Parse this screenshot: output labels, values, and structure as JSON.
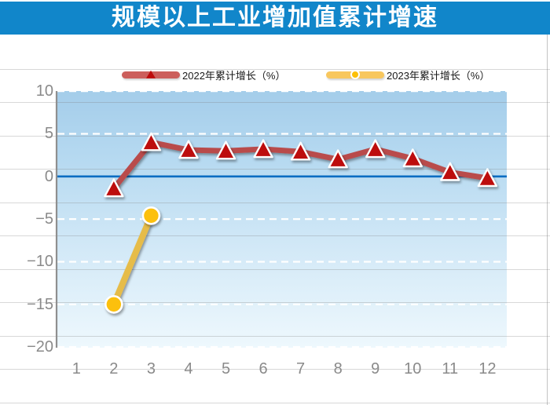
{
  "header": {
    "title": "规模以上工业增加值累计增速"
  },
  "theme": {
    "banner_color": "#1186ca",
    "title_color": "#ffffff",
    "plot_top_color": "#a4cdea",
    "plot_bottom_color": "#eef8fd",
    "gridline_color": "#ffffff",
    "zero_line_color": "#0a6dc2",
    "axis_line_color": "#8f8f8f",
    "tick_color": "#8a8a8a",
    "series_2022_line": "#b94b4b",
    "series_2022_marker": "#bd0b0b",
    "series_2023_line": "#e6bc4a",
    "series_2023_marker": "#fcc008",
    "legend_2022_pill": "#cc5f5c",
    "legend_2023_pill": "#f8c75e"
  },
  "chart_data": {
    "type": "line",
    "title": "规模以上工业增加值累计增速",
    "xlabel": "",
    "ylabel": "",
    "x_labels": [
      "1",
      "2",
      "3",
      "4",
      "5",
      "6",
      "7",
      "8",
      "9",
      "10",
      "11",
      "12"
    ],
    "ylim": [
      -20,
      10
    ],
    "yticks": [
      {
        "label": "10",
        "value": 10
      },
      {
        "label": "5",
        "value": 5
      },
      {
        "label": "0",
        "value": 0
      },
      {
        "label": "−5",
        "value": -5
      },
      {
        "label": "−10",
        "value": -10
      },
      {
        "label": "−15",
        "value": -15
      },
      {
        "label": "−20",
        "value": -20
      }
    ],
    "grid": "horizontal-white-dashed",
    "legend_position": "top",
    "series": [
      {
        "name": "2022年累计增长（%）",
        "marker": "triangle",
        "x": [
          2,
          3,
          4,
          5,
          6,
          7,
          8,
          9,
          10,
          11,
          12
        ],
        "values": [
          -1.4,
          4.0,
          3.1,
          3.0,
          3.2,
          2.9,
          2.0,
          3.2,
          2.1,
          0.5,
          -0.2
        ]
      },
      {
        "name": "2023年累计增长（%）",
        "marker": "circle",
        "x": [
          2,
          3
        ],
        "values": [
          -15.0,
          -4.6
        ]
      }
    ]
  }
}
